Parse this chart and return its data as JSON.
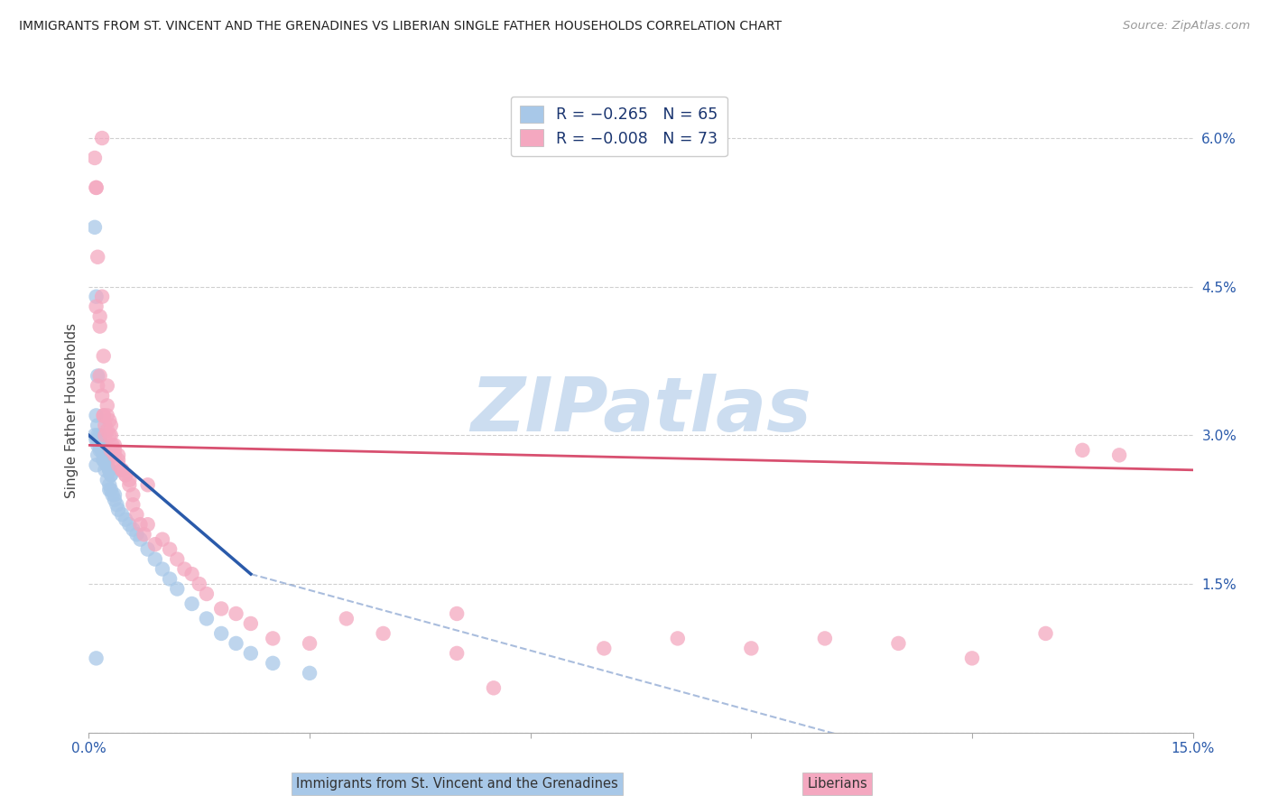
{
  "title": "IMMIGRANTS FROM ST. VINCENT AND THE GRENADINES VS LIBERIAN SINGLE FATHER HOUSEHOLDS CORRELATION CHART",
  "source": "Source: ZipAtlas.com",
  "xlabel_blue": "Immigrants from St. Vincent and the Grenadines",
  "xlabel_pink": "Liberians",
  "ylabel": "Single Father Households",
  "xlim": [
    0.0,
    0.15
  ],
  "ylim": [
    0.0,
    0.065
  ],
  "xticks": [
    0.0,
    0.03,
    0.06,
    0.09,
    0.12,
    0.15
  ],
  "yticks": [
    0.0,
    0.015,
    0.03,
    0.045,
    0.06
  ],
  "x_tick_labels": [
    "0.0%",
    "",
    "",
    "",
    "",
    "15.0%"
  ],
  "y_tick_labels": [
    "",
    "1.5%",
    "3.0%",
    "4.5%",
    "6.0%"
  ],
  "legend_R_blue": "R = −0.265",
  "legend_N_blue": "N = 65",
  "legend_R_pink": "R = −0.008",
  "legend_N_pink": "N = 73",
  "blue_color": "#a8c8e8",
  "pink_color": "#f4a8c0",
  "blue_line_color": "#2a5aaa",
  "pink_line_color": "#d85070",
  "watermark_text": "ZIPatlas",
  "watermark_color": "#ccddf0",
  "blue_x": [
    0.0008,
    0.001,
    0.0012,
    0.0008,
    0.001,
    0.0012,
    0.0015,
    0.001,
    0.0012,
    0.0015,
    0.0018,
    0.002,
    0.001,
    0.0012,
    0.0015,
    0.0018,
    0.002,
    0.0022,
    0.0025,
    0.0012,
    0.0015,
    0.0018,
    0.002,
    0.0022,
    0.0025,
    0.0028,
    0.0015,
    0.0018,
    0.002,
    0.0022,
    0.0025,
    0.0028,
    0.003,
    0.002,
    0.0025,
    0.0028,
    0.003,
    0.0025,
    0.0028,
    0.003,
    0.0035,
    0.0028,
    0.0032,
    0.0035,
    0.0038,
    0.004,
    0.0045,
    0.005,
    0.0055,
    0.006,
    0.0065,
    0.007,
    0.008,
    0.009,
    0.01,
    0.011,
    0.012,
    0.014,
    0.016,
    0.018,
    0.02,
    0.022,
    0.025,
    0.03,
    0.001
  ],
  "blue_y": [
    0.051,
    0.044,
    0.036,
    0.03,
    0.0295,
    0.029,
    0.0285,
    0.032,
    0.031,
    0.03,
    0.029,
    0.028,
    0.027,
    0.028,
    0.029,
    0.0285,
    0.0275,
    0.0265,
    0.028,
    0.03,
    0.0295,
    0.029,
    0.0285,
    0.0275,
    0.027,
    0.0265,
    0.029,
    0.0285,
    0.028,
    0.0275,
    0.027,
    0.0265,
    0.026,
    0.0275,
    0.027,
    0.0265,
    0.026,
    0.0255,
    0.025,
    0.0245,
    0.024,
    0.0245,
    0.024,
    0.0235,
    0.023,
    0.0225,
    0.022,
    0.0215,
    0.021,
    0.0205,
    0.02,
    0.0195,
    0.0185,
    0.0175,
    0.0165,
    0.0155,
    0.0145,
    0.013,
    0.0115,
    0.01,
    0.009,
    0.008,
    0.007,
    0.006,
    0.0075
  ],
  "pink_x": [
    0.0008,
    0.001,
    0.0012,
    0.0015,
    0.0018,
    0.001,
    0.0012,
    0.0015,
    0.0018,
    0.002,
    0.0022,
    0.001,
    0.0015,
    0.0018,
    0.002,
    0.0025,
    0.002,
    0.0025,
    0.0022,
    0.0028,
    0.0025,
    0.0028,
    0.003,
    0.0032,
    0.0025,
    0.003,
    0.0035,
    0.003,
    0.0035,
    0.004,
    0.0035,
    0.004,
    0.0045,
    0.004,
    0.0045,
    0.005,
    0.0055,
    0.006,
    0.005,
    0.0055,
    0.006,
    0.0065,
    0.007,
    0.0075,
    0.008,
    0.008,
    0.009,
    0.01,
    0.011,
    0.012,
    0.013,
    0.014,
    0.015,
    0.016,
    0.018,
    0.02,
    0.022,
    0.025,
    0.03,
    0.035,
    0.04,
    0.05,
    0.07,
    0.08,
    0.09,
    0.1,
    0.11,
    0.12,
    0.13,
    0.135,
    0.14,
    0.055,
    0.05
  ],
  "pink_y": [
    0.058,
    0.055,
    0.048,
    0.042,
    0.06,
    0.055,
    0.035,
    0.036,
    0.044,
    0.032,
    0.03,
    0.043,
    0.041,
    0.034,
    0.038,
    0.035,
    0.032,
    0.033,
    0.031,
    0.03,
    0.032,
    0.0315,
    0.031,
    0.029,
    0.0305,
    0.03,
    0.029,
    0.0285,
    0.028,
    0.0275,
    0.0285,
    0.028,
    0.0265,
    0.027,
    0.0265,
    0.026,
    0.0255,
    0.024,
    0.026,
    0.025,
    0.023,
    0.022,
    0.021,
    0.02,
    0.025,
    0.021,
    0.019,
    0.0195,
    0.0185,
    0.0175,
    0.0165,
    0.016,
    0.015,
    0.014,
    0.0125,
    0.012,
    0.011,
    0.0095,
    0.009,
    0.0115,
    0.01,
    0.008,
    0.0085,
    0.0095,
    0.0085,
    0.0095,
    0.009,
    0.0075,
    0.01,
    0.0285,
    0.028,
    0.0045,
    0.012
  ]
}
